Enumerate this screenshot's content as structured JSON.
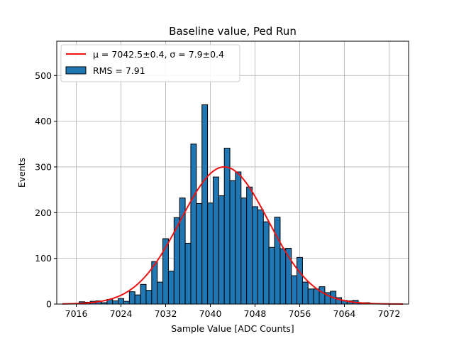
{
  "chart_data": {
    "type": "bar",
    "title": "Baseline value, Ped Run",
    "xlabel": "Sample Value [ADC Counts]",
    "ylabel": "Events",
    "xlim": [
      7012.5,
      7075.5
    ],
    "ylim": [
      0,
      575
    ],
    "x_ticks": [
      7016,
      7024,
      7032,
      7040,
      7048,
      7056,
      7064,
      7072
    ],
    "y_ticks": [
      0,
      100,
      200,
      300,
      400,
      500
    ],
    "grid": true,
    "bin_width": 1,
    "bar_color": "#1f77b4",
    "bar_edge_color": "#000000",
    "fit_color": "#ee1111",
    "legend": {
      "placement": "top-left",
      "fit_label": "μ = 7042.5±0.4, σ = 7.9±0.4",
      "hist_label": "RMS = 7.91"
    },
    "histogram": {
      "bin_centers": [
        7013,
        7014,
        7015,
        7016,
        7017,
        7018,
        7019,
        7020,
        7021,
        7022,
        7023,
        7024,
        7025,
        7026,
        7027,
        7028,
        7029,
        7030,
        7031,
        7032,
        7033,
        7034,
        7035,
        7036,
        7037,
        7038,
        7039,
        7040,
        7041,
        7042,
        7043,
        7044,
        7045,
        7046,
        7047,
        7048,
        7049,
        7050,
        7051,
        7052,
        7053,
        7054,
        7055,
        7056,
        7057,
        7058,
        7059,
        7060,
        7061,
        7062,
        7063,
        7064,
        7065,
        7066,
        7067,
        7068,
        7069,
        7070,
        7071,
        7072,
        7073,
        7074,
        7075
      ],
      "counts": [
        0,
        0,
        0,
        0,
        5,
        4,
        6,
        7,
        3,
        10,
        7,
        12,
        6,
        27,
        20,
        43,
        30,
        93,
        48,
        143,
        72,
        189,
        232,
        133,
        350,
        220,
        436,
        221,
        278,
        237,
        341,
        270,
        289,
        232,
        256,
        213,
        206,
        180,
        124,
        190,
        121,
        122,
        62,
        102,
        48,
        33,
        33,
        38,
        25,
        28,
        14,
        8,
        7,
        8,
        2,
        3,
        1,
        0,
        0,
        0,
        0,
        0,
        0
      ]
    },
    "gaussian_fit": {
      "mu": 7042.5,
      "sigma": 7.9,
      "amplitude": 300,
      "x_range": [
        7013.5,
        7074.5
      ]
    }
  }
}
